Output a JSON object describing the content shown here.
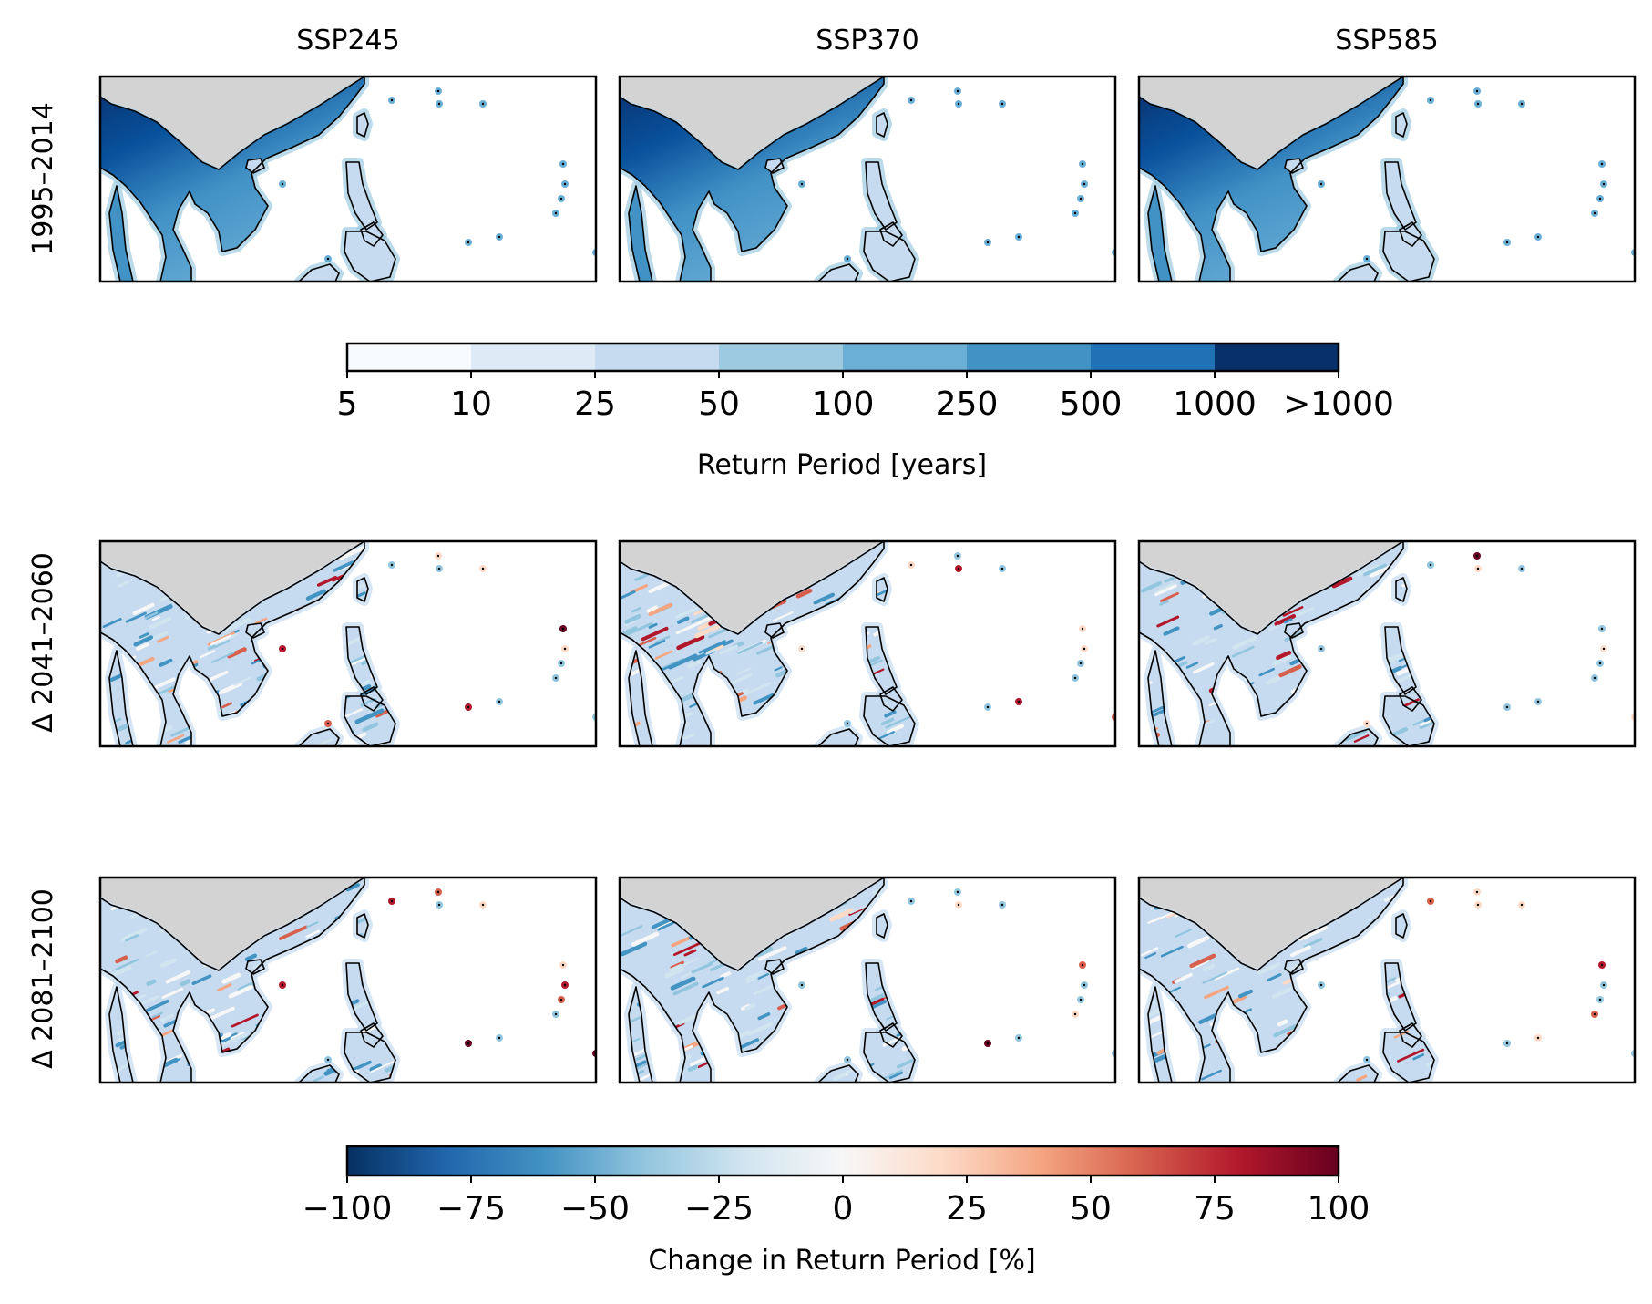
{
  "columns": [
    "SSP245",
    "SSP370",
    "SSP585"
  ],
  "rows": [
    {
      "label": "1995–2014",
      "kind": "return_period"
    },
    {
      "label": "Δ 2041–2060",
      "kind": "change"
    },
    {
      "label": "Δ 2081–2100",
      "kind": "change"
    }
  ],
  "colorbars": {
    "return_period": {
      "label": "Return Period [years]",
      "boundaries": [
        "5",
        "10",
        "25",
        "50",
        "100",
        "250",
        "500",
        "1000",
        ">1000"
      ],
      "colors": [
        "#f7fbff",
        "#deebf7",
        "#c6dbef",
        "#9ecae1",
        "#6baed6",
        "#4292c6",
        "#2171b5",
        "#08519c",
        "#08306b"
      ]
    },
    "change": {
      "label": "Change in Return Period [%]",
      "ticks": [
        "−100",
        "−75",
        "−50",
        "−25",
        "0",
        "25",
        "50",
        "75",
        "100"
      ],
      "range": [
        -100,
        100
      ],
      "colormap": [
        "#053061",
        "#2166ac",
        "#4393c3",
        "#92c5de",
        "#d1e5f0",
        "#f7f7f7",
        "#fddbc7",
        "#f4a582",
        "#d6604d",
        "#b2182b",
        "#67001f"
      ]
    }
  },
  "map_colors": {
    "no_data_land": "#d3d3d3",
    "ocean": "#ffffff",
    "coastline": "#000000"
  }
}
